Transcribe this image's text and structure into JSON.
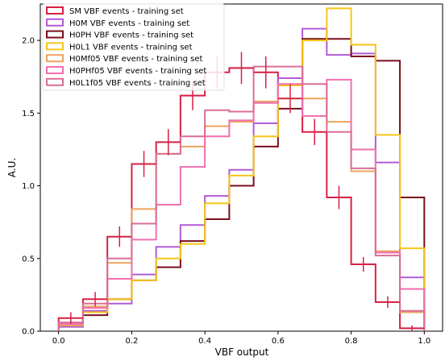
{
  "chart_data": {
    "type": "step-histogram",
    "xlabel": "VBF output",
    "ylabel": "A.U.",
    "xlim": [
      -0.05,
      1.05
    ],
    "ylim": [
      0,
      2.25
    ],
    "xticks": [
      0.0,
      0.2,
      0.4,
      0.6,
      0.8,
      1.0
    ],
    "xtick_labels": [
      "0.0",
      "0.2",
      "0.4",
      "0.6",
      "0.8",
      "1.0"
    ],
    "yticks": [
      0.0,
      0.5,
      1.0,
      1.5,
      2.0
    ],
    "ytick_labels": [
      "0.0",
      "0.5",
      "1.0",
      "1.5",
      "2.0"
    ],
    "grid": false,
    "legend_position": "top-left",
    "bin_edges": [
      0.0,
      0.0667,
      0.1333,
      0.2,
      0.2667,
      0.3333,
      0.4,
      0.4667,
      0.5333,
      0.6,
      0.6667,
      0.7333,
      0.8,
      0.8667,
      0.9333,
      1.0
    ],
    "series": [
      {
        "name": "SM VBF events - training set",
        "color": "#d62045",
        "values": [
          0.09,
          0.22,
          0.65,
          1.15,
          1.3,
          1.62,
          1.78,
          1.81,
          1.78,
          1.6,
          1.37,
          0.92,
          0.46,
          0.2,
          0.02
        ],
        "errors": [
          0.04,
          0.05,
          0.07,
          0.09,
          0.09,
          0.1,
          0.11,
          0.11,
          0.11,
          0.1,
          0.09,
          0.08,
          0.05,
          0.04,
          0.02
        ]
      },
      {
        "name": "H0M VBF events - training set",
        "color": "#b25bd6",
        "values": [
          0.03,
          0.14,
          0.19,
          0.39,
          0.58,
          0.73,
          0.93,
          1.11,
          1.43,
          1.74,
          2.08,
          1.9,
          1.91,
          1.16,
          0.37
        ]
      },
      {
        "name": "H0PH VBF events - training set",
        "color": "#7a0d1c",
        "values": [
          0.04,
          0.11,
          0.22,
          0.35,
          0.44,
          0.62,
          0.77,
          1.0,
          1.27,
          1.53,
          2.01,
          2.01,
          1.89,
          1.86,
          0.92
        ]
      },
      {
        "name": "H0L1 VBF events - training set",
        "color": "#f5c518",
        "values": [
          0.04,
          0.13,
          0.22,
          0.35,
          0.5,
          0.6,
          0.88,
          1.07,
          1.34,
          1.69,
          2.0,
          2.22,
          1.97,
          1.35,
          0.57
        ]
      },
      {
        "name": "H0Mf05 VBF events - training set",
        "color": "#eba35e",
        "values": [
          0.04,
          0.17,
          0.47,
          0.84,
          1.22,
          1.27,
          1.41,
          1.44,
          1.58,
          1.6,
          1.6,
          1.44,
          1.1,
          0.55,
          0.13
        ]
      },
      {
        "name": "H0PHf05 VBF events - training set",
        "color": "#f06fb1",
        "values": [
          0.05,
          0.16,
          0.36,
          0.63,
          0.87,
          1.13,
          1.34,
          1.45,
          1.57,
          1.7,
          1.48,
          1.73,
          1.25,
          0.54,
          0.29
        ]
      },
      {
        "name": "H0L1f05 VBF events - training set",
        "color": "#da6e96",
        "values": [
          0.06,
          0.19,
          0.5,
          0.74,
          1.22,
          1.34,
          1.52,
          1.51,
          1.82,
          1.82,
          1.7,
          1.37,
          1.12,
          0.52,
          0.14
        ]
      }
    ]
  }
}
